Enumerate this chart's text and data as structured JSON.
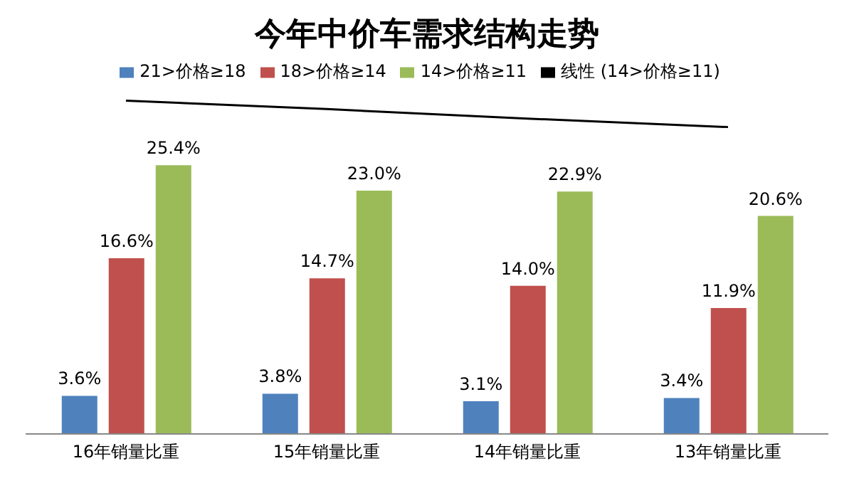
{
  "chart_data": {
    "type": "bar",
    "title": "今年中价车需求结构走势",
    "categories": [
      "16年销量比重",
      "15年销量比重",
      "14年销量比重",
      "13年销量比重"
    ],
    "legend": "top",
    "series": [
      {
        "name": "21>价格≥18",
        "color": "#4f81bd",
        "values": [
          3.6,
          3.8,
          3.1,
          3.4
        ],
        "value_labels": [
          "3.6%",
          "3.8%",
          "3.1%",
          "3.4%"
        ]
      },
      {
        "name": "18>价格≥14",
        "color": "#c0504d",
        "values": [
          16.6,
          14.7,
          14.0,
          11.9
        ],
        "value_labels": [
          "16.6%",
          "14.7%",
          "14.0%",
          "11.9%"
        ]
      },
      {
        "name": "14>价格≥11",
        "color": "#9bbb59",
        "values": [
          25.4,
          23.0,
          22.9,
          20.6
        ],
        "value_labels": [
          "25.4%",
          "23.0%",
          "22.9%",
          "20.6%"
        ]
      },
      {
        "name": "线性 (14>价格≥11)",
        "type": "line",
        "color": "#000000",
        "values": [
          31.5,
          30.7,
          29.8,
          29.0
        ]
      }
    ]
  }
}
